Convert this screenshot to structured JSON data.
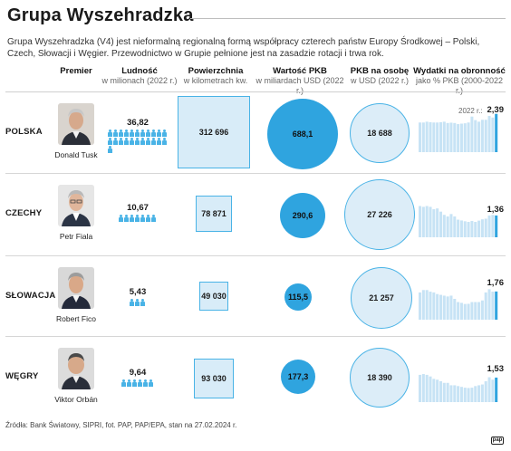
{
  "title": "Grupa Wyszehradzka",
  "intro": "Grupa Wyszehradzka (V4) jest nieformalną regionalną formą współpracy czterech państw Europy Środkowej – Polski, Czech, Słowacji i Węgier. Przewodnictwo w Grupie pełnione jest na zasadzie rotacji i trwa rok.",
  "columns": {
    "premier": {
      "main": "Premier",
      "sub": ""
    },
    "population": {
      "main": "Ludność",
      "sub": "w milionach (2022 r.)"
    },
    "area": {
      "main": "Powierzchnia",
      "sub": "w kilometrach kw."
    },
    "gdp": {
      "main": "Wartość PKB",
      "sub": "w miliardach USD (2022 r.)"
    },
    "gdppc": {
      "main": "PKB na osobę",
      "sub": "w USD (2022 r.)"
    },
    "defense": {
      "main": "Wydatki na obronność",
      "sub": "jako % PKB (2000-2022 r.)"
    }
  },
  "defense_year_label": "2022 r.:",
  "countries": [
    {
      "country": "POLSKA",
      "premier": "Donald Tusk",
      "population": "36,82",
      "population_value": 36.82,
      "area": "312 696",
      "area_value": 312696,
      "gdp": "688,1",
      "gdp_value": 688.1,
      "gdppc": "18 688",
      "gdppc_value": 18688,
      "defense": "2,39",
      "defense_series": [
        1.85,
        1.85,
        1.9,
        1.87,
        1.85,
        1.85,
        1.87,
        1.9,
        1.82,
        1.84,
        1.82,
        1.75,
        1.78,
        1.8,
        1.85,
        2.22,
        2.0,
        1.9,
        2.02,
        2.02,
        2.26,
        2.16,
        2.39
      ]
    },
    {
      "country": "CZECHY",
      "premier": "Petr Fiala",
      "population": "10,67",
      "population_value": 10.67,
      "area": "78 871",
      "area_value": 78871,
      "gdp": "290,6",
      "gdp_value": 290.6,
      "gdppc": "27 226",
      "gdppc_value": 27226,
      "defense": "1,36",
      "defense_series": [
        1.95,
        1.9,
        1.95,
        1.9,
        1.75,
        1.8,
        1.6,
        1.4,
        1.3,
        1.45,
        1.3,
        1.1,
        1.05,
        1.0,
        0.96,
        1.02,
        0.96,
        1.04,
        1.12,
        1.16,
        1.36,
        1.4,
        1.36
      ]
    },
    {
      "country": "SŁOWACJA",
      "premier": "Robert Fico",
      "population": "5,43",
      "population_value": 5.43,
      "area": "49 030",
      "area_value": 49030,
      "gdp": "115,5",
      "gdp_value": 115.5,
      "gdppc": "21 257",
      "gdppc_value": 21257,
      "defense": "1,76",
      "defense_series": [
        1.7,
        1.85,
        1.85,
        1.75,
        1.7,
        1.6,
        1.55,
        1.5,
        1.45,
        1.5,
        1.3,
        1.1,
        1.05,
        0.98,
        0.99,
        1.1,
        1.1,
        1.1,
        1.2,
        1.7,
        1.9,
        1.75,
        1.76
      ]
    },
    {
      "country": "WĘGRY",
      "premier": "Viktor Orbán",
      "population": "9,64",
      "population_value": 9.64,
      "area": "93 030",
      "area_value": 93030,
      "gdp": "177,3",
      "gdp_value": 177.3,
      "gdppc": "18 390",
      "gdppc_value": 18390,
      "defense": "1,53",
      "defense_series": [
        1.7,
        1.75,
        1.7,
        1.6,
        1.45,
        1.4,
        1.3,
        1.2,
        1.2,
        1.05,
        1.05,
        1.0,
        0.95,
        0.9,
        0.88,
        0.9,
        1.0,
        1.05,
        1.1,
        1.3,
        1.55,
        1.4,
        1.53
      ]
    }
  ],
  "source": "Źródła: Bank Światowy, SIPRI, fot. PAP, PAP/EPA, stan na 27.02.2024 r.",
  "logo_text": "pap",
  "colors": {
    "accent": "#2fa4df",
    "light": "#dcedf8",
    "bar": "#c7e3f5",
    "bar_last": "#2fa4df"
  }
}
